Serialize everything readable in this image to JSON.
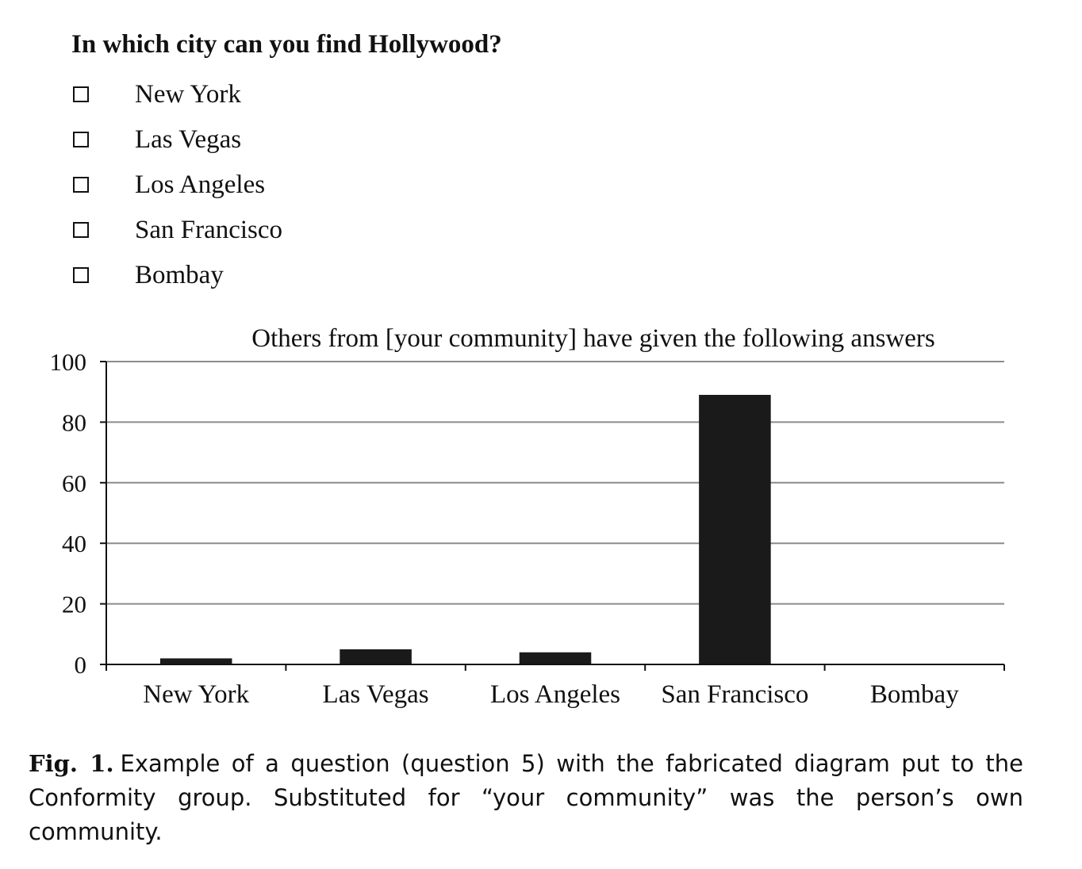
{
  "question": {
    "text": "In which city can you find Hollywood?",
    "options": [
      {
        "label": "New York",
        "checked": false
      },
      {
        "label": "Las Vegas",
        "checked": false
      },
      {
        "label": "Los Angeles",
        "checked": false
      },
      {
        "label": "San Francisco",
        "checked": false
      },
      {
        "label": "Bombay",
        "checked": false
      }
    ]
  },
  "chart_data": {
    "type": "bar",
    "title": "Others from [your community] have given the following answers",
    "categories": [
      "New York",
      "Las Vegas",
      "Los Angeles",
      "San Francisco",
      "Bombay"
    ],
    "values": [
      2,
      5,
      4,
      89,
      0
    ],
    "xlabel": "",
    "ylabel": "",
    "ylim": [
      0,
      100
    ],
    "yticks": [
      0,
      20,
      40,
      60,
      80,
      100
    ],
    "grid": true,
    "legend": "none",
    "bar_color": "#1a1a1a",
    "grid_color": "#8c8c8c"
  },
  "caption": {
    "label": "Fig. 1.",
    "text": "Example of a question (question 5) with the fabricated diagram put to the Conformity group. Substituted for “your community” was the person’s own community."
  }
}
